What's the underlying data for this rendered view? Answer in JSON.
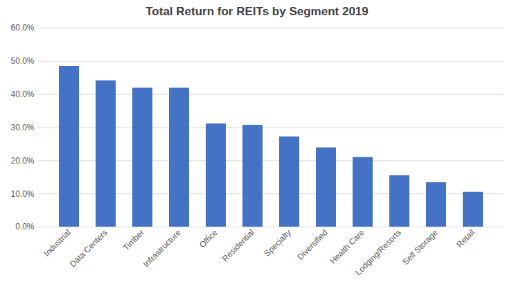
{
  "chart_data": {
    "type": "bar",
    "title": "Total Return for REITs by Segment 2019",
    "categories": [
      "Industrial",
      "Data Centers",
      "Timber",
      "Infrastructure",
      "Office",
      "Residential",
      "Specialty",
      "Diversified",
      "Health Care",
      "Lodging/Resorts",
      "Self Storage",
      "Retail"
    ],
    "values": [
      48.5,
      44.1,
      41.9,
      41.9,
      31.1,
      30.7,
      27.2,
      23.9,
      21.0,
      15.5,
      13.4,
      10.5
    ],
    "color": "#4472c4",
    "ylim": [
      0,
      60
    ],
    "yticks": [
      {
        "value": 0,
        "label": "0.0%"
      },
      {
        "value": 10,
        "label": "10.0%"
      },
      {
        "value": 20,
        "label": "20.0%"
      },
      {
        "value": 30,
        "label": "30.0%"
      },
      {
        "value": 40,
        "label": "40.0%"
      },
      {
        "value": 50,
        "label": "50.0%"
      },
      {
        "value": 60,
        "label": "60.0%"
      }
    ],
    "grid": true
  }
}
